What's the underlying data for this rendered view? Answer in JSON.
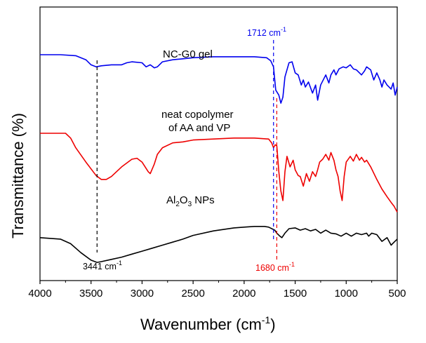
{
  "chart_data": {
    "type": "line",
    "title": "",
    "xlabel": "Wavenumber (cm",
    "xlabel_sup": "-1",
    "xlabel_tail": ")",
    "ylabel": "Transmittance (%)",
    "xlim": [
      4000,
      500
    ],
    "x_reversed": true,
    "y_ticks_shown": false,
    "grid": false,
    "x_ticks": [
      4000,
      3500,
      3000,
      2500,
      2000,
      1500,
      1000,
      500
    ],
    "x_tick_labels": [
      "4000",
      "3500",
      "3000",
      "2500",
      "2000",
      "1500",
      "1000",
      "500"
    ],
    "series": [
      {
        "name": "NC-G0 gel",
        "color": "#0000ee",
        "x": [
          4000,
          3800,
          3650,
          3550,
          3500,
          3450,
          3400,
          3300,
          3200,
          3150,
          3100,
          3000,
          2960,
          2920,
          2880,
          2850,
          2800,
          2700,
          2600,
          2500,
          2300,
          2100,
          1900,
          1780,
          1740,
          1712,
          1690,
          1660,
          1640,
          1620,
          1600,
          1560,
          1530,
          1500,
          1470,
          1440,
          1420,
          1400,
          1370,
          1330,
          1300,
          1280,
          1250,
          1200,
          1170,
          1150,
          1120,
          1100,
          1070,
          1030,
          1000,
          960,
          930,
          900,
          850,
          820,
          800,
          760,
          730,
          700,
          670,
          650,
          630,
          600,
          580,
          560,
          540,
          520,
          500
        ],
        "y": [
          100,
          100,
          99,
          95,
          90,
          88,
          89,
          90,
          90,
          92,
          93,
          92,
          88,
          90,
          87,
          88,
          93,
          95,
          96,
          97,
          98,
          98,
          98,
          97,
          94,
          88,
          65,
          60,
          52,
          58,
          78,
          92,
          93,
          82,
          80,
          70,
          75,
          68,
          73,
          62,
          70,
          55,
          70,
          80,
          72,
          80,
          85,
          80,
          86,
          88,
          87,
          90,
          86,
          85,
          80,
          84,
          88,
          85,
          75,
          82,
          75,
          68,
          75,
          70,
          68,
          66,
          72,
          60,
          68
        ]
      },
      {
        "name": "neat copolymer of AA and VP",
        "color": "#ee0000",
        "x": [
          4000,
          3750,
          3700,
          3650,
          3550,
          3450,
          3400,
          3350,
          3300,
          3200,
          3100,
          3050,
          3000,
          2970,
          2940,
          2920,
          2900,
          2880,
          2850,
          2800,
          2700,
          2600,
          2500,
          2300,
          2100,
          1900,
          1760,
          1730,
          1712,
          1695,
          1680,
          1660,
          1640,
          1620,
          1600,
          1580,
          1550,
          1520,
          1500,
          1470,
          1450,
          1420,
          1390,
          1360,
          1330,
          1300,
          1280,
          1260,
          1230,
          1200,
          1170,
          1150,
          1120,
          1100,
          1080,
          1060,
          1040,
          1020,
          1000,
          960,
          930,
          900,
          870,
          850,
          820,
          800,
          760,
          700,
          650,
          600,
          560,
          530,
          510,
          500
        ],
        "y": [
          100,
          100,
          95,
          85,
          70,
          56,
          52,
          52,
          55,
          65,
          73,
          74,
          70,
          65,
          60,
          58,
          63,
          68,
          78,
          85,
          90,
          91,
          93,
          94,
          95,
          95,
          94,
          90,
          85,
          88,
          87,
          60,
          40,
          30,
          60,
          76,
          65,
          72,
          62,
          56,
          55,
          45,
          58,
          50,
          60,
          55,
          62,
          70,
          73,
          78,
          72,
          80,
          72,
          62,
          55,
          40,
          30,
          55,
          70,
          76,
          71,
          78,
          72,
          75,
          70,
          72,
          65,
          52,
          42,
          34,
          28,
          24,
          20,
          18
        ]
      },
      {
        "name": "Al2O3 NPs",
        "color": "#000000",
        "x": [
          4000,
          3800,
          3700,
          3600,
          3500,
          3441,
          3400,
          3300,
          3200,
          3100,
          3000,
          2900,
          2800,
          2700,
          2600,
          2500,
          2300,
          2100,
          2000,
          1900,
          1800,
          1760,
          1700,
          1680,
          1650,
          1630,
          1600,
          1560,
          1500,
          1450,
          1400,
          1350,
          1300,
          1250,
          1200,
          1150,
          1100,
          1050,
          1000,
          950,
          900,
          850,
          800,
          780,
          750,
          700,
          650,
          600,
          560,
          530,
          500
        ],
        "y": [
          60,
          58,
          52,
          40,
          30,
          27,
          28,
          31,
          34,
          38,
          42,
          46,
          50,
          54,
          58,
          63,
          69,
          73,
          74,
          75,
          75,
          74,
          70,
          66,
          62,
          60,
          66,
          72,
          73,
          70,
          72,
          69,
          71,
          66,
          70,
          66,
          65,
          62,
          66,
          62,
          66,
          64,
          66,
          62,
          66,
          64,
          55,
          60,
          50,
          54,
          58
        ]
      }
    ],
    "labels": {
      "ncg0": "NC-G0 gel",
      "copolymer_line1": "neat copolymer",
      "copolymer_line2": "of AA and VP",
      "al2o3_pre": "Al",
      "al2o3_sub1": "2",
      "al2o3_mid": "O",
      "al2o3_sub2": "3",
      "al2o3_tail": " NPs"
    },
    "annotations": [
      {
        "x": 1712,
        "text": "1712 cm",
        "sup": "-1",
        "color": "#0000ee"
      },
      {
        "x": 1680,
        "text": "1680 cm",
        "sup": "-1",
        "color": "#ee0000"
      },
      {
        "x": 3441,
        "text": "3441 cm",
        "sup": "-1",
        "color": "#000000"
      }
    ]
  }
}
